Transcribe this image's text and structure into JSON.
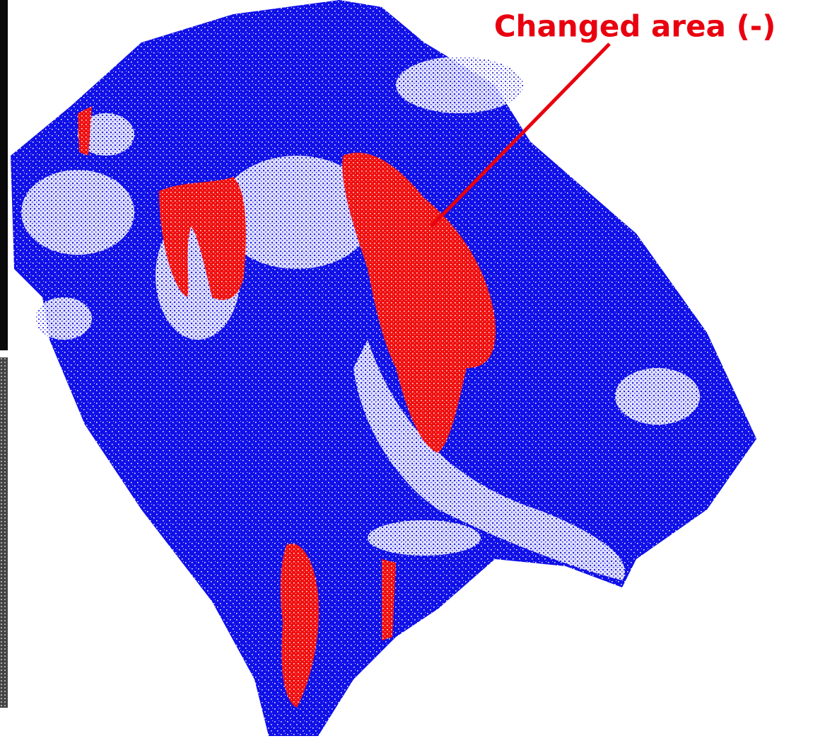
{
  "annotation": {
    "label": "Changed area (-)"
  }
}
